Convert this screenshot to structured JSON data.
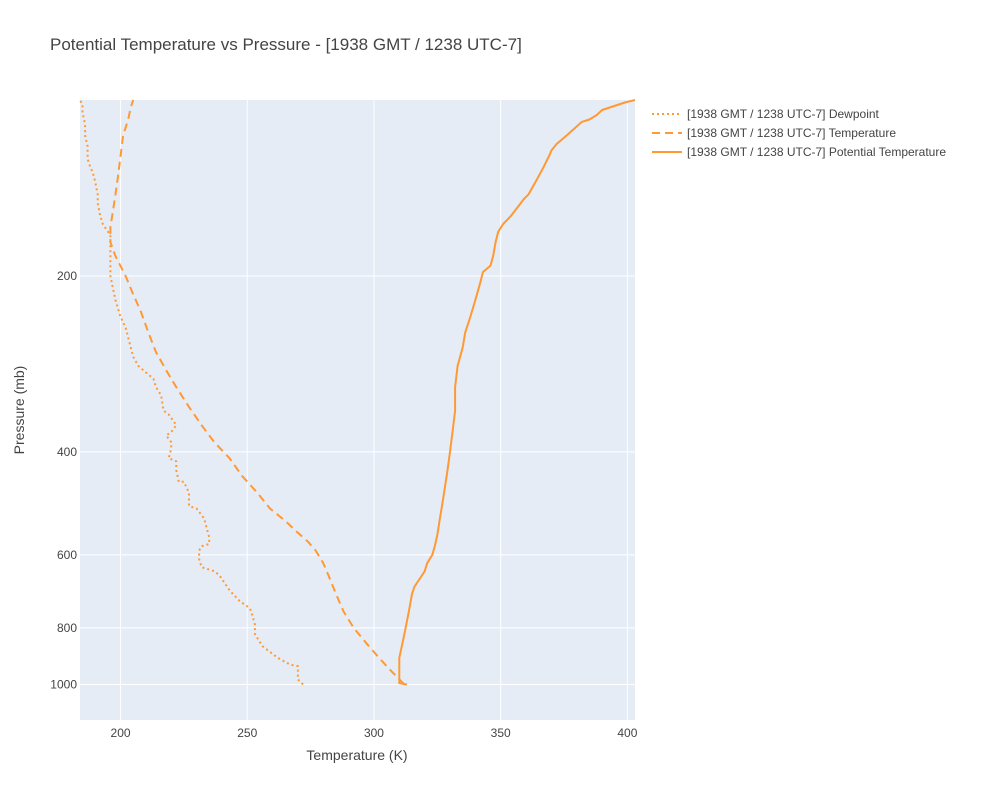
{
  "chart_data": {
    "type": "line",
    "title": "Potential Temperature vs Pressure - [1938 GMT / 1238 UTC-7]",
    "xlabel": "Temperature (K)",
    "ylabel": "Pressure (mb)",
    "xlim": [
      184,
      403
    ],
    "ylim_log": [
      1150,
      100
    ],
    "y_scale": "log",
    "y_reversed": true,
    "grid": true,
    "legend_position": "top-right",
    "x_ticks": [
      200,
      250,
      300,
      350,
      400
    ],
    "y_ticks": [
      200,
      400,
      600,
      800,
      1000
    ],
    "color": "#ff9933",
    "series": [
      {
        "name": "[1938 GMT / 1238 UTC-7] Dewpoint",
        "dash": "dot",
        "points": [
          [
            272,
            1000
          ],
          [
            270,
            980
          ],
          [
            270,
            960
          ],
          [
            270,
            930
          ],
          [
            267,
            925
          ],
          [
            262,
            900
          ],
          [
            256,
            860
          ],
          [
            253,
            820
          ],
          [
            253,
            790
          ],
          [
            252,
            760
          ],
          [
            251,
            740
          ],
          [
            247,
            720
          ],
          [
            243,
            690
          ],
          [
            240,
            660
          ],
          [
            239,
            650
          ],
          [
            237,
            640
          ],
          [
            232,
            630
          ],
          [
            231,
            610
          ],
          [
            231,
            590
          ],
          [
            232,
            580
          ],
          [
            235,
            575
          ],
          [
            235,
            560
          ],
          [
            234,
            540
          ],
          [
            233,
            520
          ],
          [
            230,
            500
          ],
          [
            227,
            495
          ],
          [
            227,
            470
          ],
          [
            225,
            450
          ],
          [
            223,
            450
          ],
          [
            222,
            430
          ],
          [
            222,
            415
          ],
          [
            219,
            410
          ],
          [
            220,
            395
          ],
          [
            220,
            385
          ],
          [
            218,
            375
          ],
          [
            220,
            370
          ],
          [
            222,
            360
          ],
          [
            221,
            355
          ],
          [
            219,
            345
          ],
          [
            217,
            340
          ],
          [
            216,
            320
          ],
          [
            214,
            310
          ],
          [
            213,
            300
          ],
          [
            209,
            290
          ],
          [
            207,
            285
          ],
          [
            205,
            275
          ],
          [
            203,
            255
          ],
          [
            202,
            245
          ],
          [
            200,
            235
          ],
          [
            198,
            220
          ],
          [
            197,
            210
          ],
          [
            196,
            200
          ],
          [
            196,
            190
          ],
          [
            196,
            180
          ],
          [
            196,
            170
          ],
          [
            195,
            168
          ],
          [
            193,
            163
          ],
          [
            192,
            158
          ],
          [
            191,
            150
          ],
          [
            191,
            145
          ],
          [
            190,
            138
          ],
          [
            189,
            133
          ],
          [
            188,
            130
          ],
          [
            187,
            126
          ],
          [
            187,
            120
          ],
          [
            186,
            115
          ],
          [
            186,
            110
          ],
          [
            185,
            105
          ],
          [
            185,
            102
          ],
          [
            184,
            100
          ]
        ]
      },
      {
        "name": "[1938 GMT / 1238 UTC-7] Temperature",
        "dash": "dash",
        "points": [
          [
            312,
            1000
          ],
          [
            307,
            950
          ],
          [
            302,
            900
          ],
          [
            297,
            850
          ],
          [
            292,
            800
          ],
          [
            288,
            750
          ],
          [
            285,
            700
          ],
          [
            282,
            650
          ],
          [
            280,
            620
          ],
          [
            277,
            590
          ],
          [
            274,
            570
          ],
          [
            270,
            550
          ],
          [
            265,
            525
          ],
          [
            259,
            500
          ],
          [
            254,
            470
          ],
          [
            248,
            440
          ],
          [
            243,
            410
          ],
          [
            237,
            385
          ],
          [
            232,
            360
          ],
          [
            227,
            335
          ],
          [
            222,
            310
          ],
          [
            218,
            290
          ],
          [
            214,
            270
          ],
          [
            211,
            250
          ],
          [
            208,
            230
          ],
          [
            205,
            215
          ],
          [
            202,
            200
          ],
          [
            198,
            185
          ],
          [
            196,
            175
          ],
          [
            196,
            165
          ],
          [
            197,
            155
          ],
          [
            198,
            145
          ],
          [
            199,
            135
          ],
          [
            200,
            125
          ],
          [
            201,
            115
          ],
          [
            203,
            108
          ],
          [
            204,
            103
          ],
          [
            205,
            100
          ]
        ]
      },
      {
        "name": "[1938 GMT / 1238 UTC-7] Potential Temperature",
        "dash": "solid",
        "points": [
          [
            313,
            1000
          ],
          [
            310,
            995
          ],
          [
            310,
            960
          ],
          [
            310,
            930
          ],
          [
            310,
            900
          ],
          [
            311,
            860
          ],
          [
            312,
            820
          ],
          [
            313,
            780
          ],
          [
            314,
            740
          ],
          [
            315,
            700
          ],
          [
            316,
            680
          ],
          [
            318,
            660
          ],
          [
            320,
            640
          ],
          [
            321,
            620
          ],
          [
            323,
            600
          ],
          [
            324,
            580
          ],
          [
            325,
            555
          ],
          [
            326,
            520
          ],
          [
            327,
            490
          ],
          [
            328,
            460
          ],
          [
            329,
            430
          ],
          [
            330,
            400
          ],
          [
            331,
            370
          ],
          [
            332,
            340
          ],
          [
            332,
            310
          ],
          [
            333,
            285
          ],
          [
            335,
            265
          ],
          [
            336,
            250
          ],
          [
            338,
            235
          ],
          [
            340,
            220
          ],
          [
            342,
            205
          ],
          [
            343,
            197
          ],
          [
            346,
            192
          ],
          [
            347,
            185
          ],
          [
            348,
            175
          ],
          [
            349,
            168
          ],
          [
            351,
            163
          ],
          [
            354,
            158
          ],
          [
            357,
            152
          ],
          [
            359,
            148
          ],
          [
            361,
            145
          ],
          [
            363,
            140
          ],
          [
            365,
            135
          ],
          [
            367,
            130
          ],
          [
            369,
            125
          ],
          [
            370,
            122
          ],
          [
            372,
            119
          ],
          [
            374,
            117
          ],
          [
            376,
            115
          ],
          [
            378,
            113
          ],
          [
            380,
            111
          ],
          [
            382,
            109
          ],
          [
            385,
            108
          ],
          [
            388,
            106
          ],
          [
            390,
            104
          ],
          [
            393,
            103
          ],
          [
            396,
            102
          ],
          [
            399,
            101
          ],
          [
            403,
            100
          ]
        ]
      }
    ]
  }
}
